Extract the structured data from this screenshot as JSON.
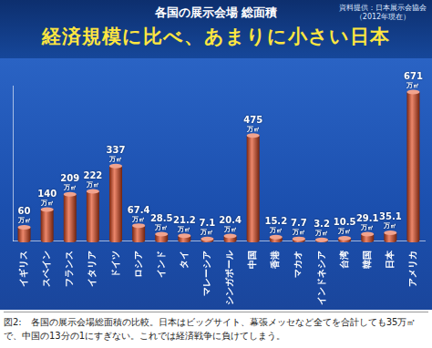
{
  "chart_data": {
    "type": "bar",
    "title": "各国の展示会場 総面積",
    "subtitle": "経済規模に比べ、あまりに小さい日本",
    "annotations": [
      "資料提供：日本展示会協会",
      "（2012年現在）"
    ],
    "categories": [
      "イギリス",
      "スペイン",
      "フランス",
      "イタリア",
      "ドイツ",
      "ロシア",
      "インド",
      "タイ",
      "マレーシア",
      "シンガポール",
      "中国",
      "香港",
      "マカオ",
      "インドネシア",
      "台湾",
      "韓国",
      "日本",
      "アメリカ"
    ],
    "values": [
      60,
      140,
      209,
      222,
      337,
      67.4,
      28.5,
      21.2,
      7.1,
      20.4,
      475,
      15.2,
      7.7,
      3.2,
      10.5,
      29.1,
      35.1,
      671
    ],
    "value_labels": [
      "60万㎡",
      "140万㎡",
      "209万㎡",
      "222万㎡",
      "337万㎡",
      "67.4万㎡",
      "28.5万㎡",
      "21.2万㎡",
      "7.1万㎡",
      "20.4万㎡",
      "475万㎡",
      "15.2万㎡",
      "7.7万㎡",
      "3.2万㎡",
      "10.5万㎡",
      "29.1万㎡",
      "35.1万㎡",
      "671万㎡"
    ],
    "color": "#e2461c",
    "ylim": [
      0,
      700
    ],
    "grid": false,
    "data_labels": true,
    "tick_labels": "x"
  },
  "caption": "図2:　各国の展示会場総面積の比較。日本はビッグサイト、幕張メッセなど全てを合計しても35万㎡で、中国の13分の1にすぎない。これでは経済戦争に負けてしまう。"
}
